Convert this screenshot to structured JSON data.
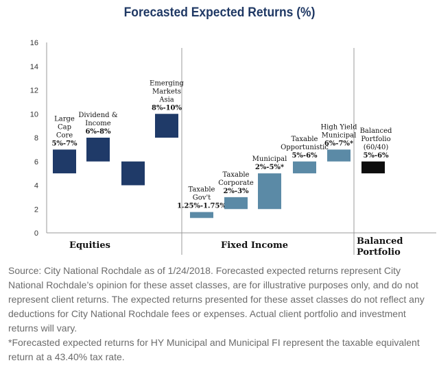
{
  "chart_data": {
    "type": "bar",
    "subtype": "floating-range",
    "title": "Forecasted Expected Returns (%)",
    "ylim": [
      0,
      16
    ],
    "yticks": [
      0,
      2,
      4,
      6,
      8,
      10,
      12,
      14,
      16
    ],
    "grid": false,
    "colors": {
      "equities": "#1f3a68",
      "fixed_income": "#5b8aa6",
      "balanced": "#0d0d0d",
      "title": "#1f3864"
    },
    "groups": [
      {
        "name": "Equities"
      },
      {
        "name": "Fixed Income"
      },
      {
        "name": "Balanced Portfolio",
        "lines": [
          "Balanced",
          "Portfolio"
        ]
      }
    ],
    "bars": [
      {
        "group": 0,
        "low": 5,
        "high": 7,
        "label_lines": [
          "Large",
          "Cap",
          "Core",
          "5%-7%"
        ]
      },
      {
        "group": 0,
        "low": 6,
        "high": 8,
        "label_lines": [
          "Dividend &",
          "Income",
          "6%-8%"
        ]
      },
      {
        "group": 0,
        "low": 4,
        "high": 6,
        "label_lines": []
      },
      {
        "group": 0,
        "low": 8,
        "high": 10,
        "label_lines": [
          "Emerging",
          "Markets",
          "Asia",
          "8%-10%"
        ]
      },
      {
        "group": 1,
        "low": 1.25,
        "high": 1.75,
        "label_lines": [
          "Taxable",
          "Gov't",
          "1.25%-1.75%"
        ]
      },
      {
        "group": 1,
        "low": 2,
        "high": 3,
        "label_lines": [
          "Taxable",
          "Corporate",
          "2%-3%"
        ]
      },
      {
        "group": 1,
        "low": 2,
        "high": 5,
        "label_lines": [
          "Municipal",
          "2%-5%*"
        ]
      },
      {
        "group": 1,
        "low": 5,
        "high": 6,
        "label_lines": [
          "Taxable",
          "Opportunistic",
          "5%-6%"
        ]
      },
      {
        "group": 1,
        "low": 6,
        "high": 7,
        "label_lines": [
          "High Yield",
          "Municipal",
          "6%-7%*"
        ]
      },
      {
        "group": 2,
        "low": 5,
        "high": 6,
        "label_lines": [
          "Balanced",
          "Portfolio",
          "(60/40)",
          "5%-6%"
        ]
      }
    ]
  },
  "footnotes": {
    "source": "Source: City National Rochdale as of 1/24/2018. Forecasted expected returns represent City National Rochdale’s opinion for these asset classes, are for illustrative purposes only, and do not represent client returns. The expected returns presented for these asset classes do not reflect any deductions for City National Rochdale fees or expenses. Actual client portfolio and investment returns will vary.",
    "asterisk": "*Forecasted expected returns for HY Municipal and Municipal FI represent the taxable equivalent return at a 43.40% tax rate."
  }
}
